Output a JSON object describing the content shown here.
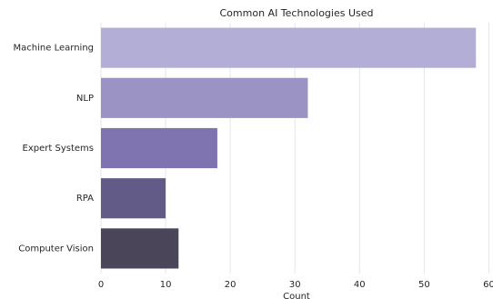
{
  "chart_data": {
    "type": "barh",
    "title": "Common AI Technologies Used",
    "xlabel": "Count",
    "categories": [
      "Machine Learning",
      "NLP",
      "Expert Systems",
      "RPA",
      "Computer Vision"
    ],
    "values": [
      58,
      32,
      18,
      10,
      12
    ],
    "colors": [
      "#b3aed6",
      "#9b93c4",
      "#7f73b0",
      "#625a87",
      "#4a4558"
    ],
    "xlim": [
      0,
      60.5
    ],
    "xticks": [
      0,
      10,
      20,
      30,
      40,
      50,
      60
    ],
    "grid": true
  }
}
